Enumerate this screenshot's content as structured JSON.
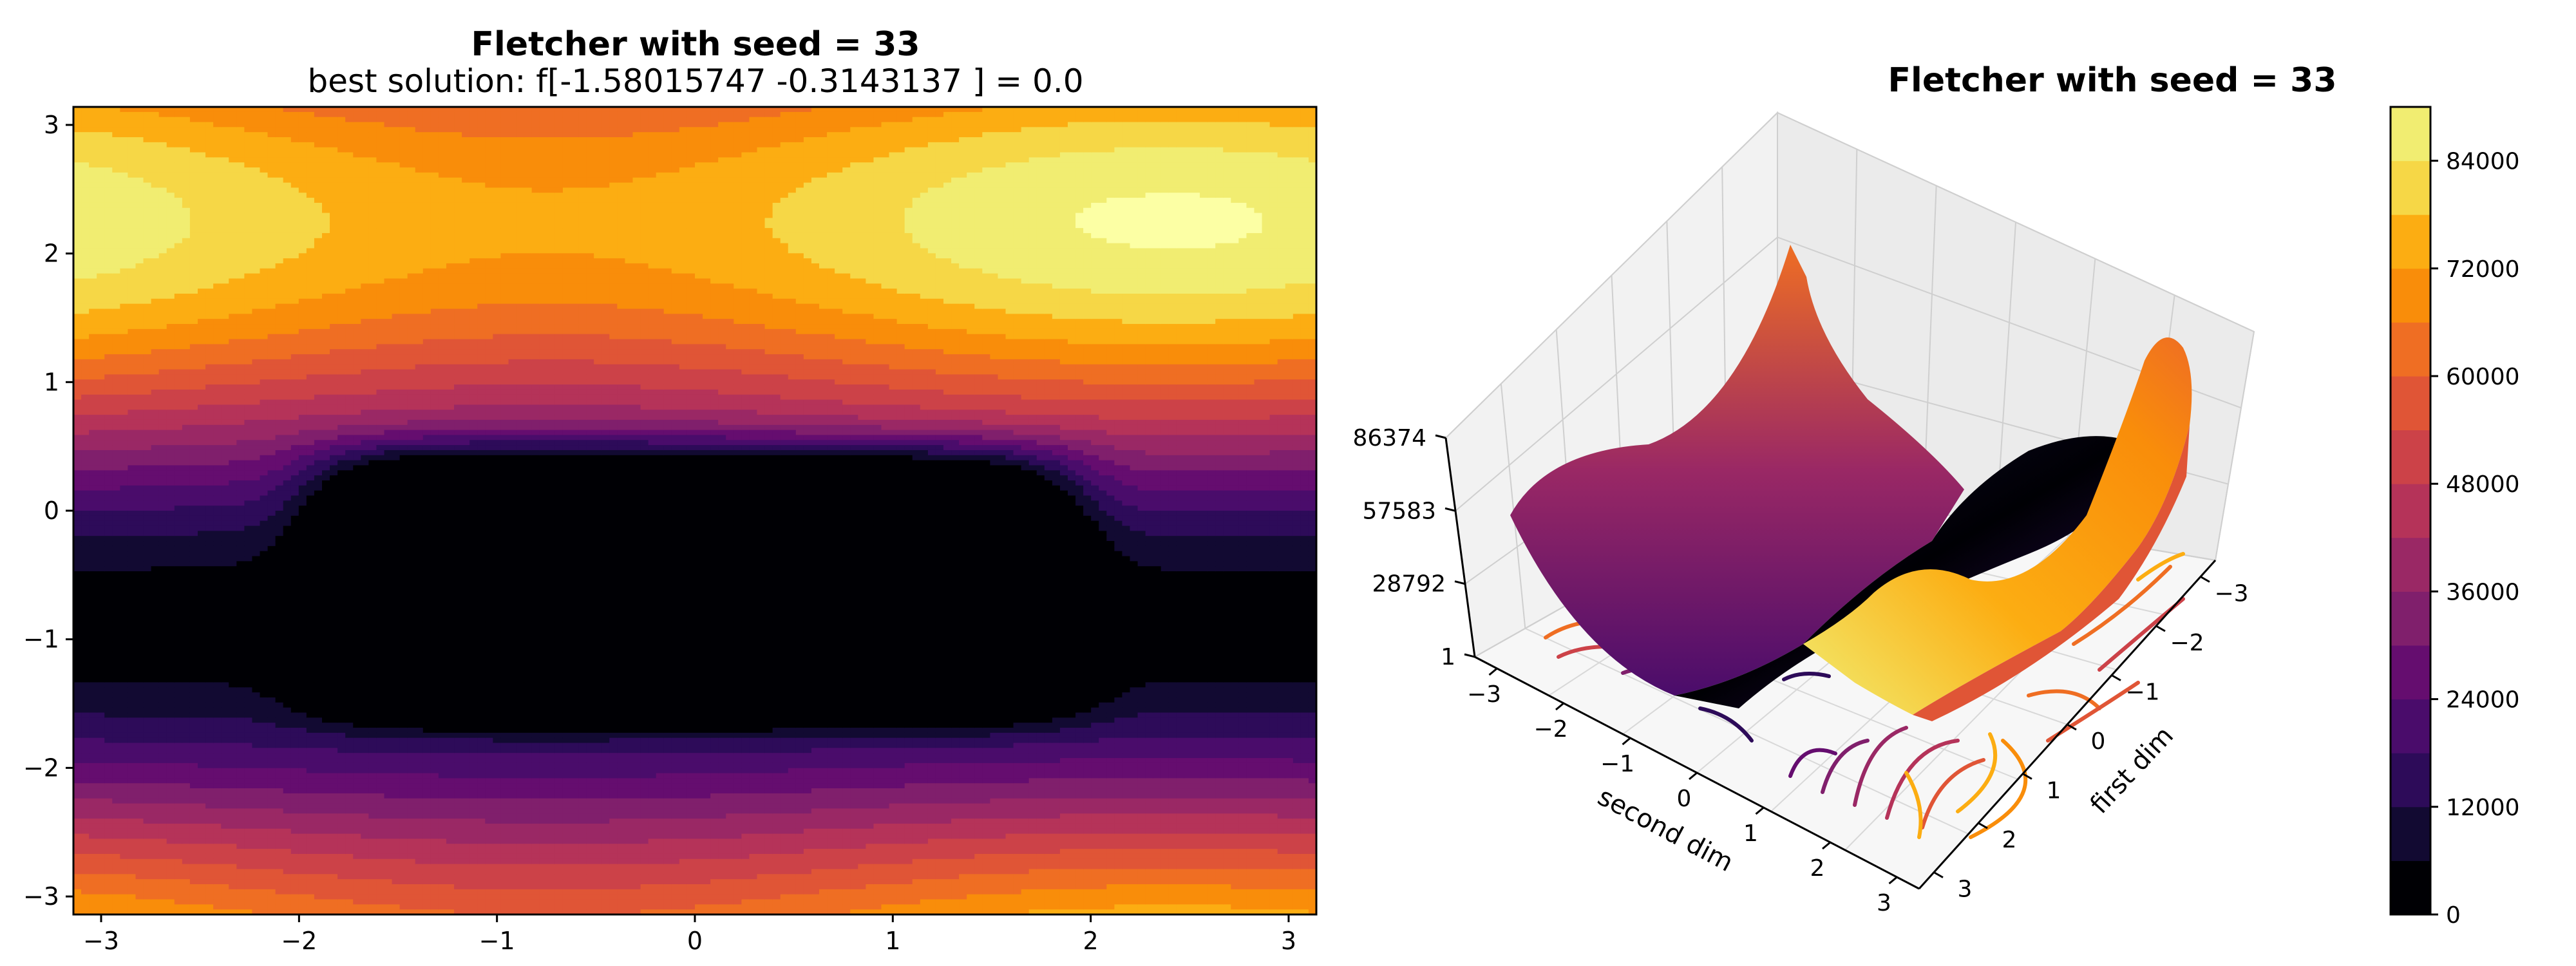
{
  "figure": {
    "left_title": "Fletcher with seed = 33",
    "left_subtitle": "best solution: f[-1.58015747 -0.3143137 ] = 0.0",
    "right_title": "Fletcher with seed = 33"
  },
  "chart_data": [
    {
      "type": "contour",
      "title": "Fletcher with seed = 33",
      "subtitle": "best solution: f[-1.58015747 -0.3143137 ] = 0.0",
      "xlabel": "",
      "ylabel": "",
      "xlim": [
        -3.14,
        3.14
      ],
      "ylim": [
        -3.14,
        3.14
      ],
      "xticks": [
        -3,
        -2,
        -1,
        0,
        1,
        2,
        3
      ],
      "yticks": [
        -3,
        -2,
        -1,
        0,
        1,
        2,
        3
      ],
      "colormap": "inferno",
      "levels": [
        0,
        6000,
        12000,
        18000,
        24000,
        30000,
        36000,
        42000,
        48000,
        54000,
        60000,
        66000,
        72000,
        78000,
        84000,
        90000
      ],
      "best_solution": {
        "x": -1.58015747,
        "y": -0.3143137,
        "value": 0.0
      }
    },
    {
      "type": "surface3d",
      "title": "Fletcher with seed = 33",
      "xlabel": "first dim",
      "ylabel": "second dim",
      "zlabel": "",
      "xticks": [
        -3,
        -2,
        -1,
        0,
        1,
        2,
        3
      ],
      "yticks": [
        -3,
        -2,
        -1,
        0,
        1,
        2,
        3
      ],
      "zticks": [
        1,
        28792,
        57583,
        86374
      ],
      "zlim": [
        1,
        86374
      ],
      "colormap": "inferno",
      "colorbar": {
        "ticks": [
          0,
          12000,
          24000,
          36000,
          48000,
          60000,
          72000,
          84000
        ],
        "levels": [
          0,
          6000,
          12000,
          18000,
          24000,
          30000,
          36000,
          42000,
          48000,
          54000,
          60000,
          66000,
          72000,
          78000,
          84000,
          90000
        ]
      }
    }
  ],
  "colors": {
    "inferno": [
      "#000004",
      "#120a32",
      "#2d0b59",
      "#4a0c6b",
      "#650d6f",
      "#801f6c",
      "#9a2865",
      "#b53359",
      "#cc4248",
      "#e05536",
      "#ef6e23",
      "#f98d0a",
      "#fcad12",
      "#f6d746",
      "#f1ed71",
      "#fcffa4"
    ]
  }
}
